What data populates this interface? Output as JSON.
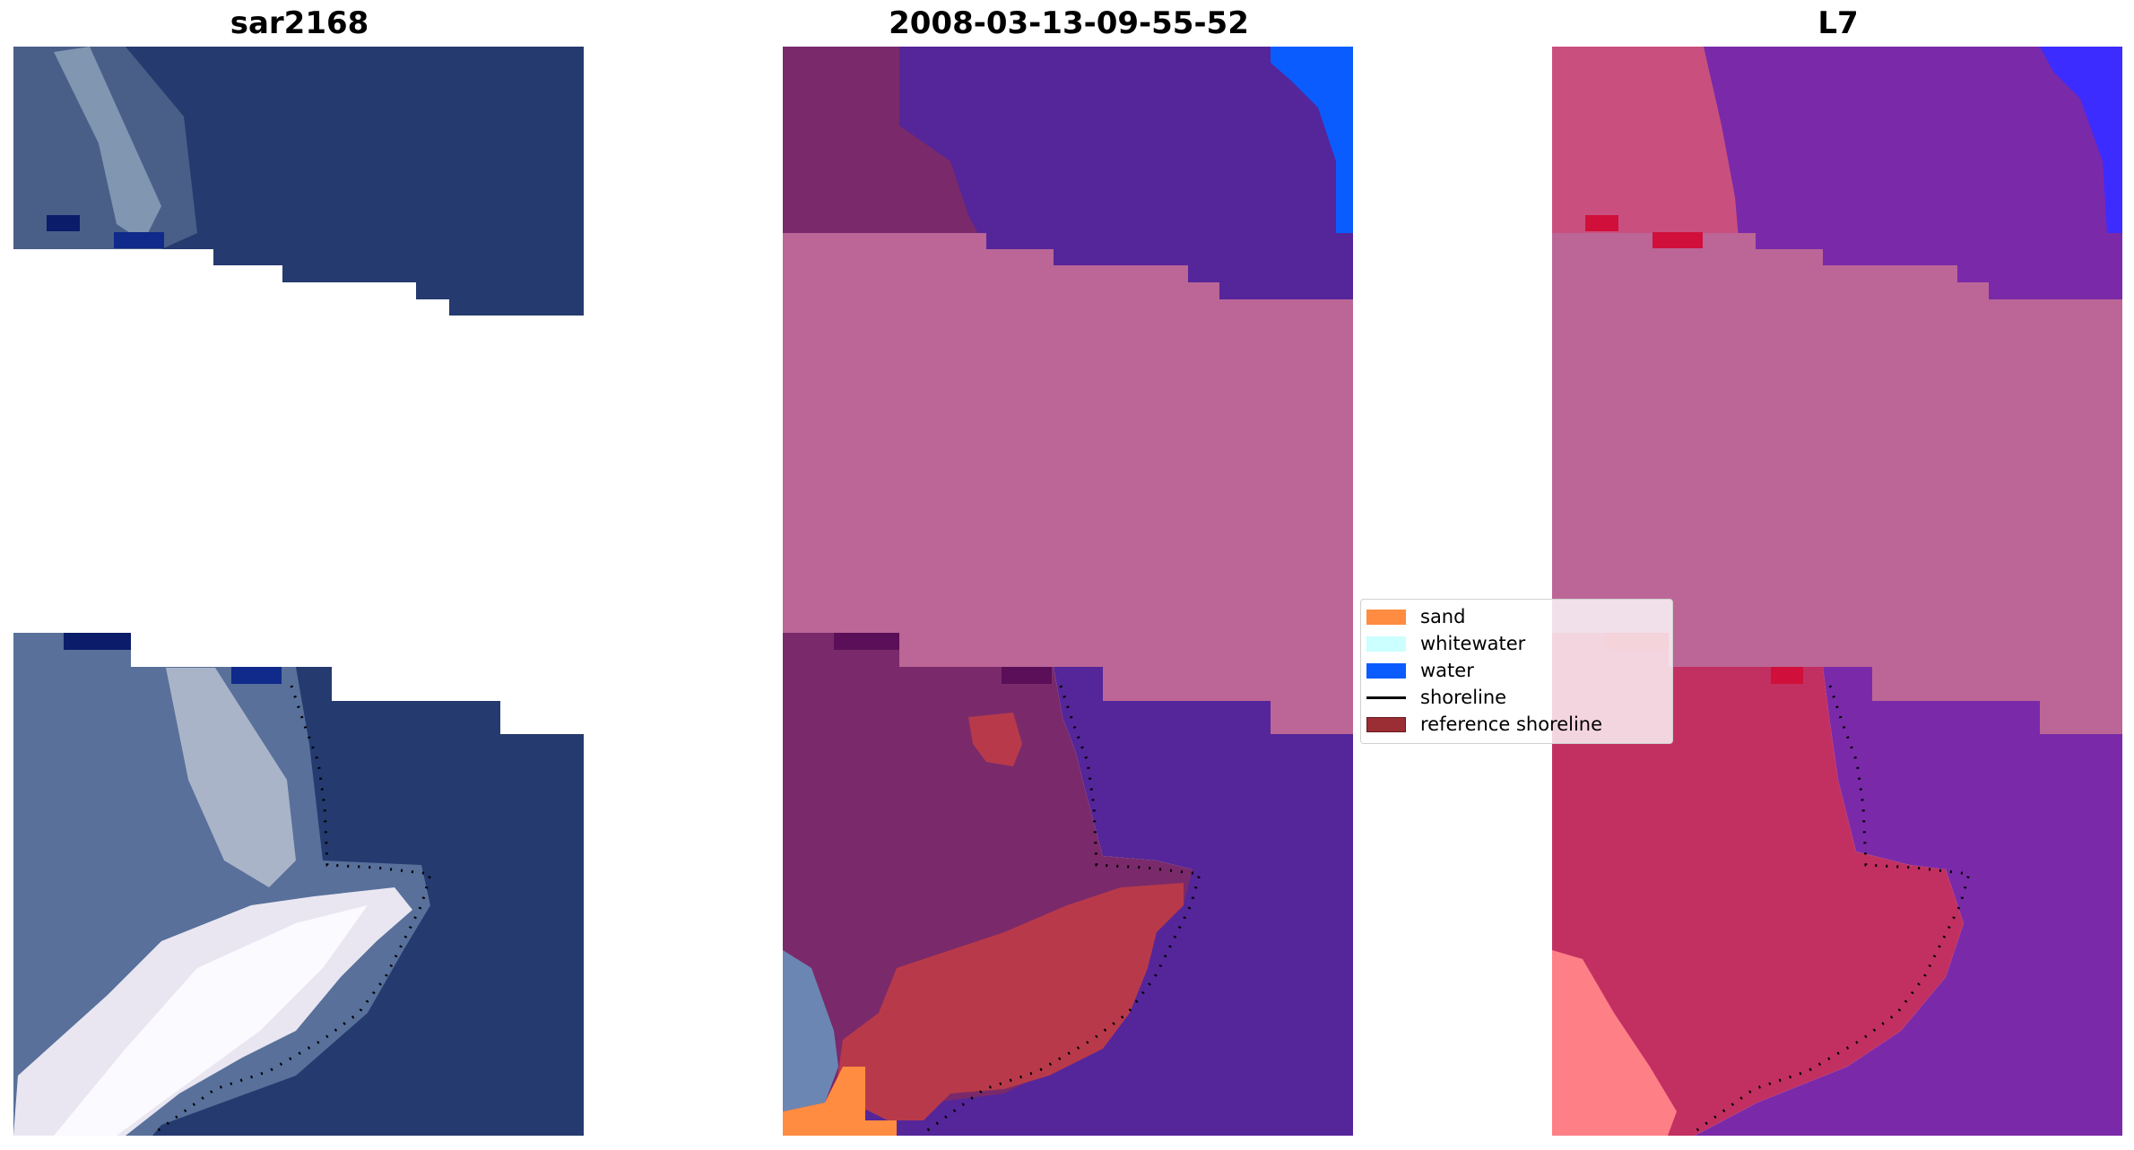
{
  "panels": [
    {
      "title": "sar2168"
    },
    {
      "title": "2008-03-13-09-55-52"
    },
    {
      "title": "L7"
    }
  ],
  "legend": {
    "items": [
      {
        "label": "sand",
        "type": "patch",
        "color": "#ff8c40"
      },
      {
        "label": "whitewater",
        "type": "patch",
        "color": "#ccffff"
      },
      {
        "label": "water",
        "type": "patch",
        "color": "#0a5cff"
      },
      {
        "label": "shoreline",
        "type": "line",
        "color": "#000000"
      },
      {
        "label": "reference shoreline",
        "type": "patch",
        "color": "#9b2d35"
      }
    ]
  },
  "colors": {
    "sea_rgb": "#253a6e",
    "land_rgb": "#6b7fa0",
    "white_rgb": "#e9e6f2",
    "class_water": "#55259a",
    "class_land": "#7a2a6a",
    "class_cloud": "#bb6696",
    "class_refshore": "#b83a4a",
    "class_sand": "#ff8c40",
    "ndwi_water": "#7a2aa8",
    "ndwi_land": "#c23062",
    "ndwi_cloud": "#bb6696",
    "ndwi_bright": "#ff7f86"
  }
}
